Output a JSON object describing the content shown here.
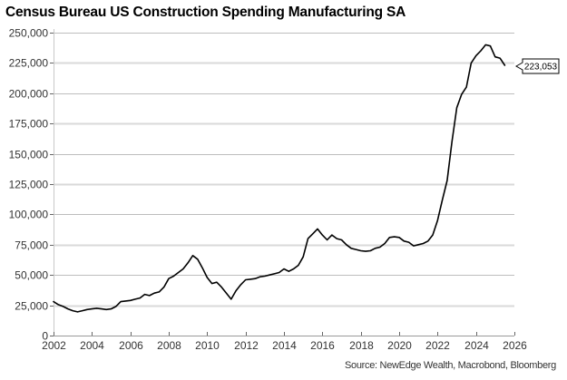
{
  "chart_data": {
    "type": "line",
    "title": "Census Bureau US Construction Spending Manufacturing SA",
    "xlabel": "",
    "ylabel": "",
    "source": "Source: NewEdge Wealth, Macrobond, Bloomberg",
    "xlim": [
      2002,
      2026
    ],
    "ylim": [
      0,
      250000
    ],
    "x_ticks": [
      "2002",
      "2004",
      "2006",
      "2008",
      "2010",
      "2012",
      "2014",
      "2016",
      "2018",
      "2020",
      "2022",
      "2024",
      "2026"
    ],
    "y_ticks": [
      "0",
      "25,000",
      "50,000",
      "75,000",
      "100,000",
      "125,000",
      "150,000",
      "175,000",
      "200,000",
      "225,000",
      "250,000"
    ],
    "grid": true,
    "legend": "none",
    "line_color": "#000000",
    "end_label": "223,053",
    "series": [
      {
        "name": "Census Bureau US Construction Spending Manufacturing SA",
        "x": [
          2002.0,
          2002.25,
          2002.5,
          2002.75,
          2003.0,
          2003.25,
          2003.5,
          2003.75,
          2004.0,
          2004.25,
          2004.5,
          2004.75,
          2005.0,
          2005.25,
          2005.5,
          2005.75,
          2006.0,
          2006.25,
          2006.5,
          2006.75,
          2007.0,
          2007.25,
          2007.5,
          2007.75,
          2008.0,
          2008.25,
          2008.5,
          2008.75,
          2009.0,
          2009.25,
          2009.5,
          2009.75,
          2010.0,
          2010.25,
          2010.5,
          2010.75,
          2011.0,
          2011.25,
          2011.5,
          2011.75,
          2012.0,
          2012.25,
          2012.5,
          2012.75,
          2013.0,
          2013.25,
          2013.5,
          2013.75,
          2014.0,
          2014.25,
          2014.5,
          2014.75,
          2015.0,
          2015.25,
          2015.5,
          2015.75,
          2016.0,
          2016.25,
          2016.5,
          2016.75,
          2017.0,
          2017.25,
          2017.5,
          2017.75,
          2018.0,
          2018.25,
          2018.5,
          2018.75,
          2019.0,
          2019.25,
          2019.5,
          2019.75,
          2020.0,
          2020.25,
          2020.5,
          2020.75,
          2021.0,
          2021.25,
          2021.5,
          2021.75,
          2022.0,
          2022.25,
          2022.5,
          2022.75,
          2023.0,
          2023.25,
          2023.5,
          2023.75,
          2024.0,
          2024.25,
          2024.5,
          2024.75,
          2025.0,
          2025.25,
          2025.5
        ],
        "values": [
          28000,
          25500,
          24000,
          22000,
          20500,
          19500,
          20500,
          21500,
          22000,
          22500,
          22000,
          21500,
          22000,
          24000,
          28000,
          28500,
          29000,
          30000,
          31000,
          34000,
          33000,
          35000,
          36000,
          40000,
          47000,
          49000,
          52000,
          55000,
          60000,
          66000,
          63000,
          56000,
          48000,
          43000,
          44000,
          40000,
          35000,
          30000,
          37000,
          42000,
          46000,
          46500,
          47000,
          48500,
          49000,
          50000,
          51000,
          52000,
          55000,
          53000,
          55000,
          58000,
          65000,
          80000,
          84000,
          88000,
          83000,
          79000,
          83000,
          80000,
          79000,
          75000,
          72000,
          71000,
          70000,
          69500,
          70000,
          72000,
          73000,
          76000,
          81000,
          81500,
          81000,
          78000,
          77000,
          74000,
          75000,
          76000,
          78000,
          83000,
          95000,
          112000,
          128000,
          160000,
          188000,
          199000,
          205000,
          225000,
          231000,
          235000,
          240000,
          239000,
          230000,
          229000,
          223053
        ]
      }
    ]
  }
}
